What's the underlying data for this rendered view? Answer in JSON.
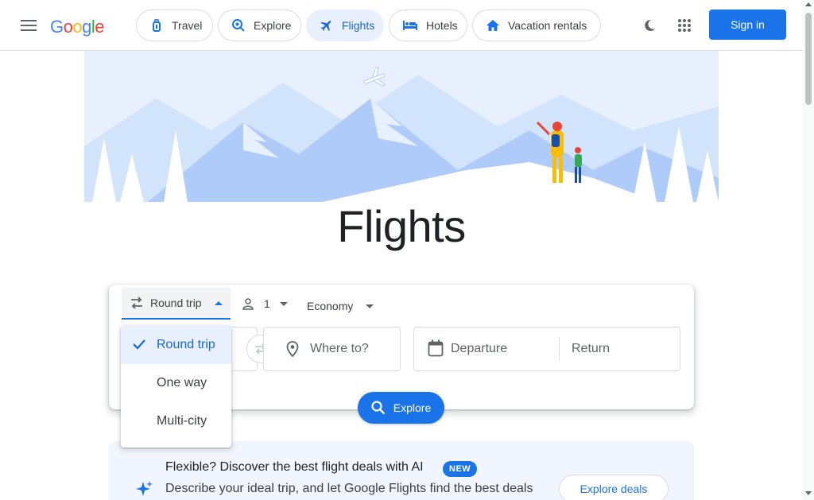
{
  "header": {
    "menu_icon": "hamburger-menu-icon",
    "logo_letters": [
      "G",
      "o",
      "o",
      "g",
      "l",
      "e"
    ],
    "tabs": [
      {
        "label": "Travel",
        "icon": "luggage-icon",
        "active": false
      },
      {
        "label": "Explore",
        "icon": "explore-search-icon",
        "active": false
      },
      {
        "label": "Flights",
        "icon": "airplane-icon",
        "active": true
      },
      {
        "label": "Hotels",
        "icon": "bed-icon",
        "active": false
      },
      {
        "label": "Vacation rentals",
        "icon": "house-icon",
        "active": false
      }
    ],
    "theme_icon": "moon-icon",
    "apps_icon": "apps-grid-icon",
    "sign_in_label": "Sign in"
  },
  "hero": {
    "title": "Flights",
    "illustration": "mountains-travelers-illustration"
  },
  "search": {
    "trip_type": "Round trip",
    "trip_options": [
      "Round trip",
      "One way",
      "Multi-city"
    ],
    "selected_trip_option": "Round trip",
    "passengers": "1",
    "cabin_class": "Economy",
    "where_to_placeholder": "Where to?",
    "departure_placeholder": "Departure",
    "return_placeholder": "Return",
    "explore_label": "Explore"
  },
  "promo": {
    "title": "Flexible? Discover the best flight deals with AI",
    "badge": "NEW",
    "description": "Describe your ideal trip, and let Google Flights find the best deals",
    "button_label": "Explore deals"
  },
  "colors": {
    "accent": "#1a73e8",
    "active_tab_bg": "#e8f0fe",
    "active_tab_text": "#1967d2",
    "promo_bg": "#f1f5fd"
  }
}
